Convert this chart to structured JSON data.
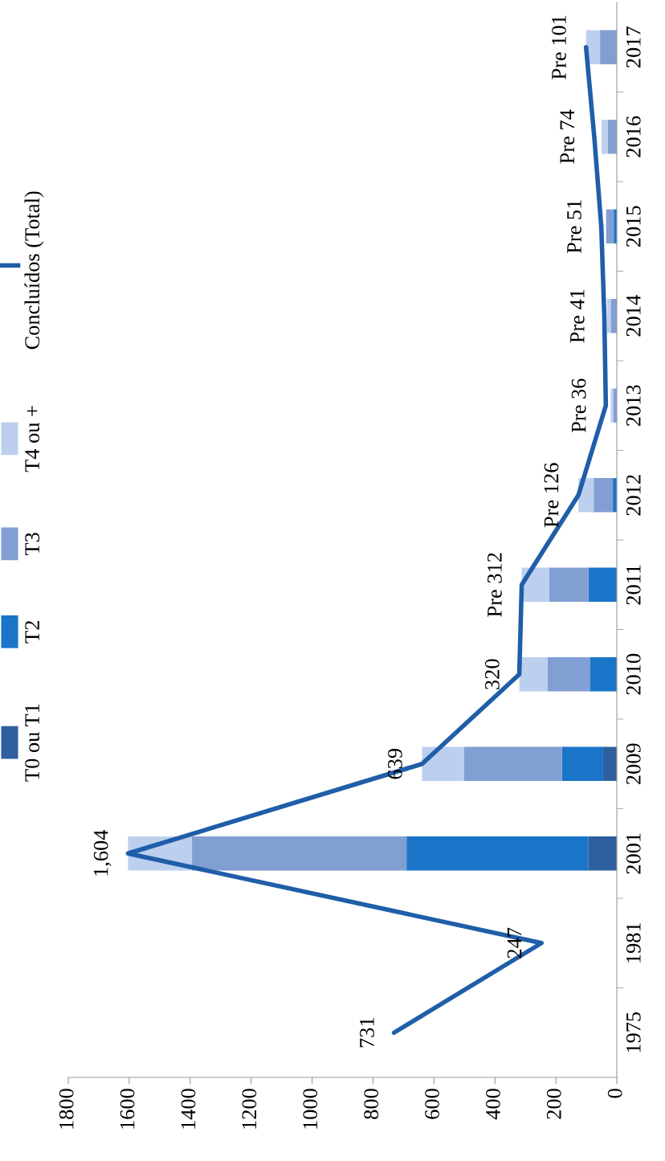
{
  "chart_data": {
    "type": "bar",
    "orientation": "horizontal",
    "stacked": true,
    "legend": "left",
    "marker": "none",
    "line_style": "solid",
    "categories": [
      "2017",
      "2016",
      "2015",
      "2014",
      "2013",
      "2012",
      "2011",
      "2010",
      "2009",
      "2001",
      "1981",
      "1975"
    ],
    "xlim": [
      1800,
      0
    ],
    "xticks": [
      0,
      200,
      400,
      600,
      800,
      1000,
      1200,
      1400,
      1600,
      1800
    ],
    "series": [
      {
        "name": "T0 ou T1",
        "color": "#2f5f9f",
        "values": [
          null,
          null,
          null,
          null,
          null,
          null,
          null,
          null,
          45,
          93,
          null,
          null
        ]
      },
      {
        "name": "T2",
        "color": "#1a75c9",
        "values": [
          null,
          null,
          10,
          null,
          null,
          13,
          93,
          87,
          135,
          597,
          null,
          null
        ]
      },
      {
        "name": "T3",
        "color": "#819fd2",
        "values": [
          55,
          30,
          25,
          20,
          12,
          63,
          129,
          141,
          322,
          704,
          null,
          null
        ]
      },
      {
        "name": "T4 ou +",
        "color": "#bccfee",
        "values": [
          46,
          20,
          null,
          12,
          8,
          50,
          90,
          92,
          137,
          210,
          null,
          null
        ]
      },
      {
        "name": "Concluídos (Total)",
        "type": "line",
        "color": "#1f5ea8",
        "values": [
          101,
          74,
          51,
          41,
          36,
          126,
          312,
          320,
          639,
          1604,
          247,
          731
        ],
        "value_labels": [
          "Pre 101",
          "Pre 74",
          "Pre 51",
          "Pre 41",
          "Pre 36",
          "Pre 126",
          "Pre 312",
          "320",
          "639",
          "1,604",
          "247",
          "731"
        ]
      }
    ]
  }
}
